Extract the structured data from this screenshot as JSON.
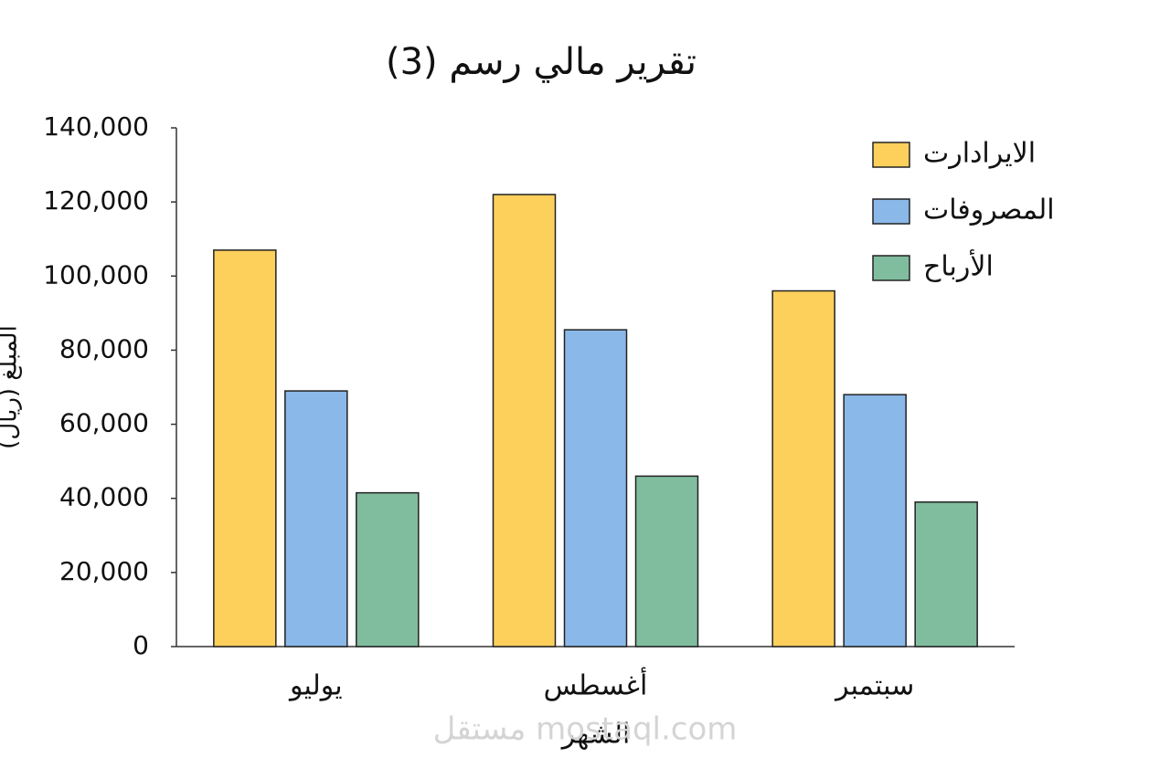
{
  "chart_data": {
    "type": "bar",
    "title": "تقرير مالي رسم (3)",
    "x_label": "الشهر",
    "y_label": "المبلغ (ريال)",
    "watermark": "مستقل mostaql.com",
    "categories": [
      "يوليو",
      "أغسطس",
      "سبتمبر"
    ],
    "series": [
      {
        "name": "الايرادارت",
        "color": "#fdd05c",
        "values": [
          107000,
          122000,
          96000
        ]
      },
      {
        "name": "المصروفات",
        "color": "#8ab8e8",
        "values": [
          69000,
          85500,
          68000
        ]
      },
      {
        "name": "الأرباح",
        "color": "#80bd9e",
        "values": [
          41500,
          46000,
          39000
        ]
      }
    ],
    "ylim": [
      0,
      140000
    ],
    "yticks": [
      0,
      {
        "value": 20000,
        "label": "20,000"
      },
      {
        "value": 40000,
        "label": "40,000"
      },
      {
        "value": 60000,
        "label": "60,000"
      },
      {
        "value": 80000,
        "label": "80,000"
      },
      {
        "value": 100000,
        "label": "100,000"
      },
      {
        "value": 120000,
        "label": "120,000"
      },
      {
        "value": 140000,
        "label": "140,000"
      }
    ],
    "grid": false,
    "legend": "top-right"
  }
}
